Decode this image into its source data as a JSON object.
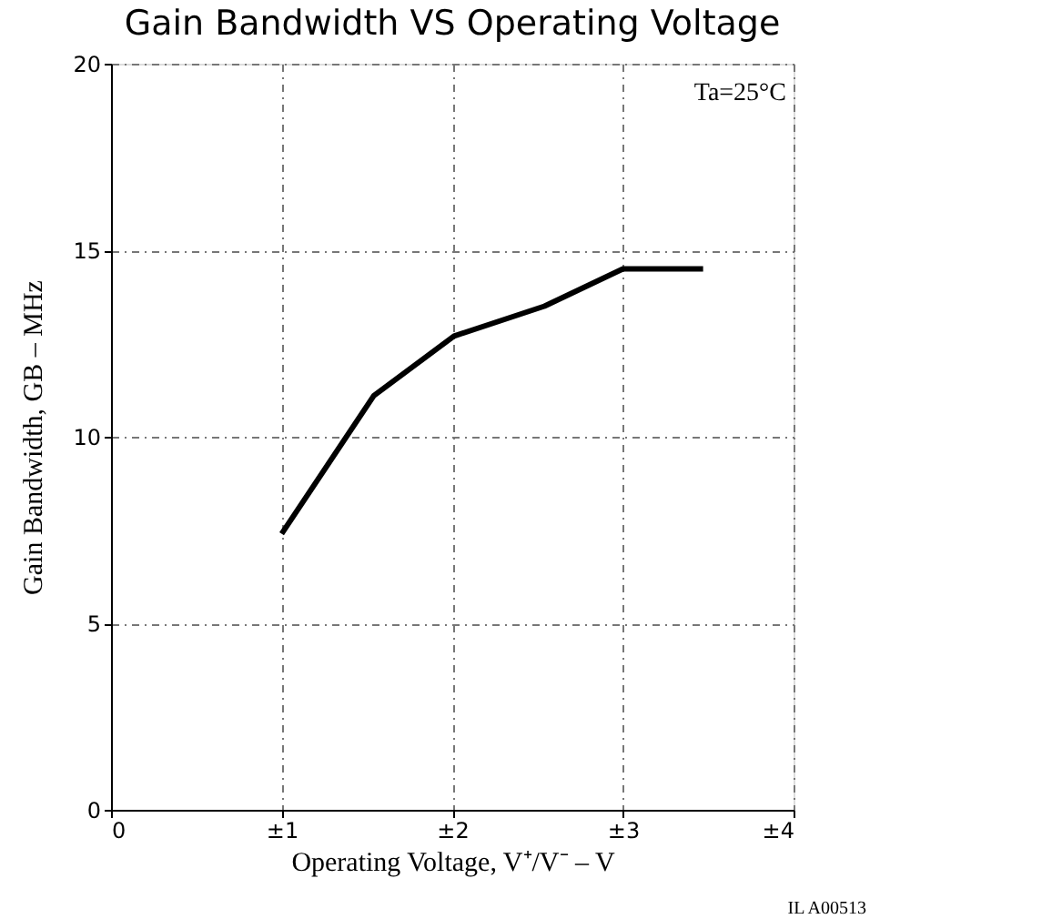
{
  "chart_data": {
    "type": "line",
    "title": "Gain Bandwidth VS Operating Voltage",
    "xlabel": "Operating Voltage, V⁺/V⁻  –  V",
    "ylabel": "Gain Bandwidth, GB  –  MHz",
    "x": [
      1,
      1.54,
      2.01,
      2.54,
      3.0,
      3.47
    ],
    "series": [
      {
        "color": "#000000",
        "values": [
          7.4,
          11.1,
          12.7,
          13.5,
          14.5,
          14.5
        ]
      }
    ],
    "xlim": [
      0,
      4
    ],
    "xticks": [
      0,
      {
        "value": 1,
        "label": "±1"
      },
      {
        "value": 2,
        "label": "±2"
      },
      {
        "value": 3,
        "label": "±3"
      },
      {
        "value": 4,
        "label": "±4"
      }
    ],
    "ylim": [
      0,
      20
    ],
    "yticks": [
      0,
      5,
      10,
      15,
      20
    ],
    "grid": true,
    "line_style": "solid",
    "marker": "none",
    "annotations": [
      "Ta=25°C",
      "IL A00513"
    ]
  }
}
